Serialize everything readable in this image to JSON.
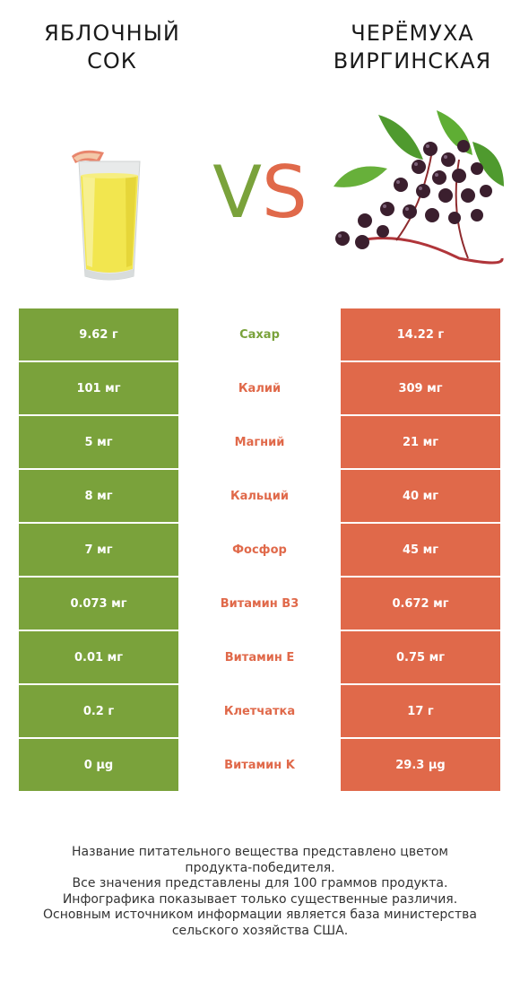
{
  "header": {
    "left_title_line1": "ЯБЛОЧНЫЙ",
    "left_title_line2": "СОК",
    "right_title_line1": "ЧЕРЁМУХА",
    "right_title_line2": "ВИРГИНСКАЯ",
    "vs_v": "V",
    "vs_s": "S"
  },
  "colors": {
    "left": "#7aa23b",
    "right": "#e0694a"
  },
  "rows": [
    {
      "left": "9.62 г",
      "label": "Сахар",
      "right": "14.22 г",
      "winner": "left"
    },
    {
      "left": "101 мг",
      "label": "Калий",
      "right": "309 мг",
      "winner": "right"
    },
    {
      "left": "5 мг",
      "label": "Магний",
      "right": "21 мг",
      "winner": "right"
    },
    {
      "left": "8 мг",
      "label": "Кальций",
      "right": "40 мг",
      "winner": "right"
    },
    {
      "left": "7 мг",
      "label": "Фосфор",
      "right": "45 мг",
      "winner": "right"
    },
    {
      "left": "0.073 мг",
      "label": "Витамин B3",
      "right": "0.672 мг",
      "winner": "right"
    },
    {
      "left": "0.01 мг",
      "label": "Витамин E",
      "right": "0.75 мг",
      "winner": "right"
    },
    {
      "left": "0.2 г",
      "label": "Клетчатка",
      "right": "17 г",
      "winner": "right"
    },
    {
      "left": "0 µg",
      "label": "Витамин K",
      "right": "29.3 µg",
      "winner": "right"
    }
  ],
  "footer": {
    "line1": "Название питательного вещества представлено цветом",
    "line2": "продукта-победителя.",
    "line3": "Все значения представлены для 100 граммов продукта.",
    "line4": "Инфографика показывает только существенные различия.",
    "line5": "Основным источником информации является база министерства",
    "line6": "сельского хозяйства США."
  }
}
